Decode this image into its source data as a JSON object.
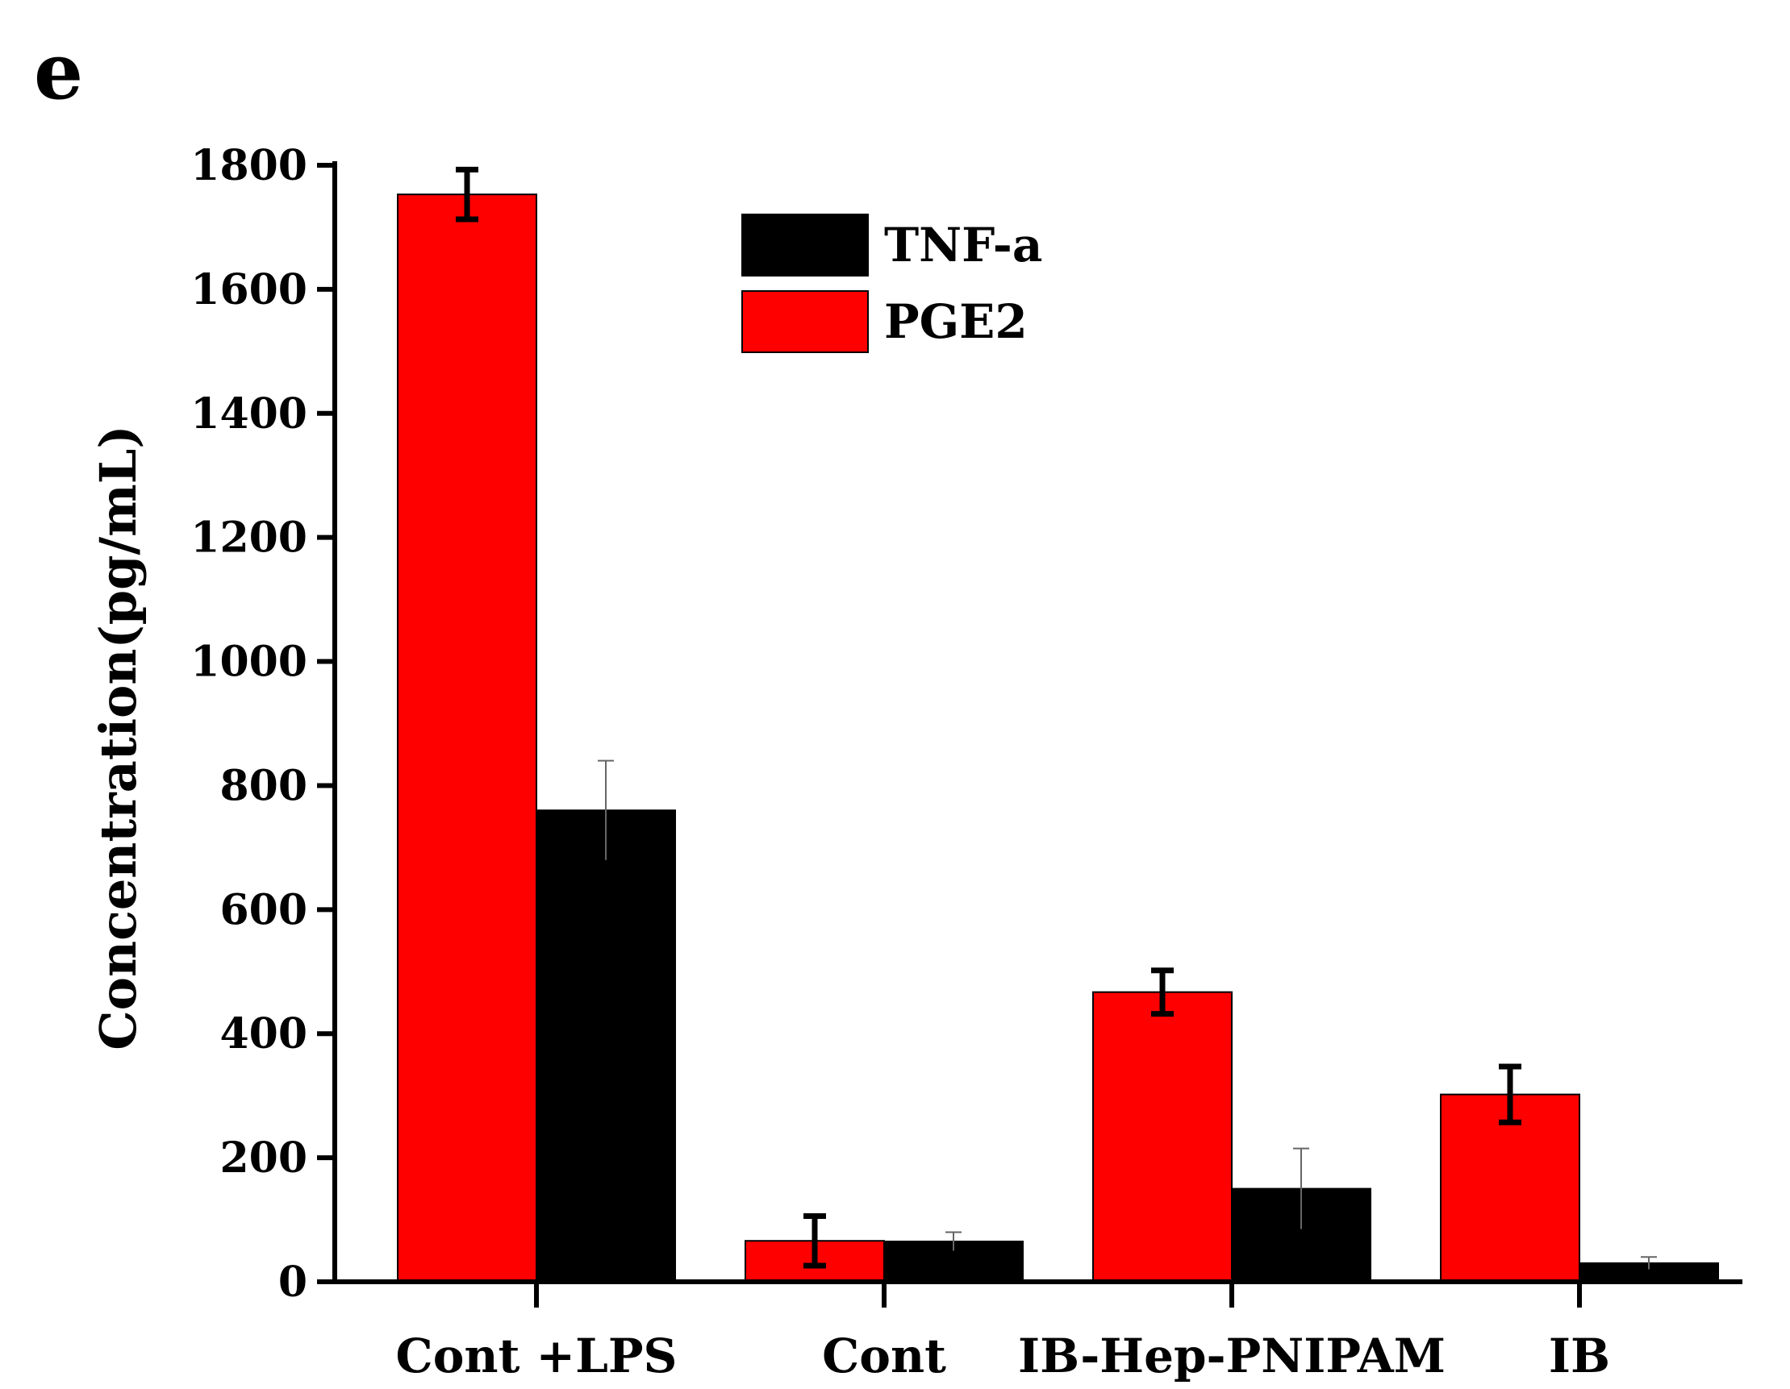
{
  "panel_label": "e",
  "colors": {
    "tnf": "#000000",
    "pge2": "#ff0000",
    "axis": "#000000"
  },
  "chart_data": {
    "type": "bar",
    "title": "",
    "xlabel": "",
    "ylabel": "Concentration(pg/mL)",
    "ylim": [
      0,
      1800
    ],
    "yticks": [
      0,
      200,
      400,
      600,
      800,
      1000,
      1200,
      1400,
      1600,
      1800
    ],
    "ytick_labels": [
      "0",
      "200",
      "400",
      "600",
      "800",
      "1000",
      "1200",
      "1400",
      "1600",
      "1800"
    ],
    "categories": [
      "Cont +LPS",
      "Cont",
      "IB-Hep-PNIPAM",
      "IB"
    ],
    "legend_position": "top-center",
    "series": [
      {
        "name": "PGE2",
        "color": "#ff0000",
        "values": [
          1753,
          66,
          467,
          302
        ],
        "errors": [
          40,
          40,
          35,
          45
        ]
      },
      {
        "name": "TNF-a",
        "color": "#000000",
        "values": [
          760,
          65,
          150,
          30
        ],
        "errors": [
          80,
          15,
          65,
          10
        ]
      }
    ],
    "legend": [
      {
        "name": "TNF-a",
        "color": "#000000"
      },
      {
        "name": "PGE2",
        "color": "#ff0000"
      }
    ]
  }
}
